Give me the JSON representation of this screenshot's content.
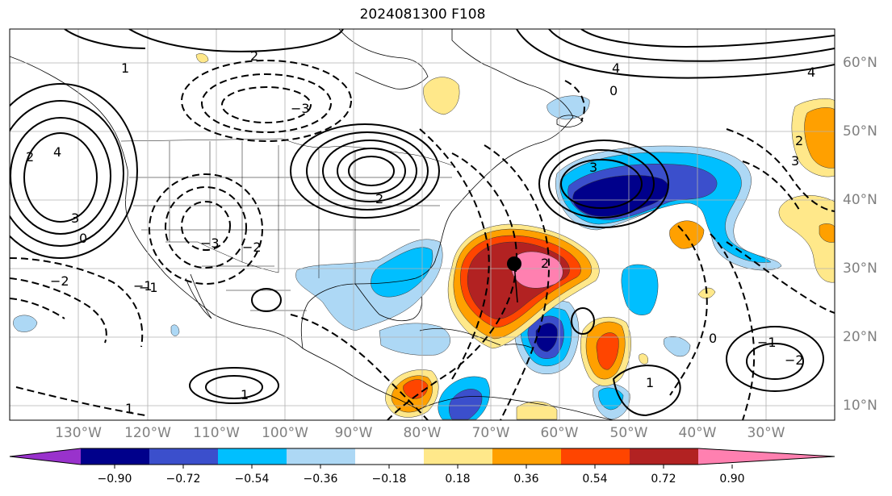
{
  "title": "2024081300 F108",
  "lon_labels": [
    "130°W",
    "120°W",
    "110°W",
    "100°W",
    "90°W",
    "80°W",
    "70°W",
    "60°W",
    "50°W",
    "40°W",
    "30°W"
  ],
  "lat_labels": [
    "60°N",
    "50°N",
    "40°N",
    "30°N",
    "20°N",
    "10°N"
  ],
  "colorbar": {
    "labels": [
      "−0.90",
      "−0.72",
      "−0.54",
      "−0.36",
      "−0.18",
      "0.18",
      "0.36",
      "0.54",
      "0.72",
      "0.90"
    ],
    "colors": [
      "#9932cc",
      "#00008b",
      "#3b4fcc",
      "#00bfff",
      "#add8f5",
      "#ffffff",
      "#ffe88a",
      "#ffa000",
      "#ff4500",
      "#b22222",
      "#ff80b0"
    ]
  },
  "fill_colors": {
    "neg90": "#00008b",
    "neg72": "#3b4fcc",
    "neg54": "#00bfff",
    "neg36": "#add8f5",
    "pos36": "#ffe88a",
    "pos54": "#ffa000",
    "pos72": "#ff4500",
    "pos90": "#b22222",
    "pos108": "#ff80b0"
  },
  "contour_labels": [
    "4",
    "3",
    "2",
    "1",
    "0",
    "−1",
    "−2",
    "−3",
    "2",
    "3",
    "4",
    "1",
    "0",
    "−1",
    "−2",
    "2",
    "3",
    "4",
    "0",
    "1",
    "2",
    "−1",
    "−2",
    "−3",
    "2",
    "1"
  ],
  "marker": "center-dot"
}
